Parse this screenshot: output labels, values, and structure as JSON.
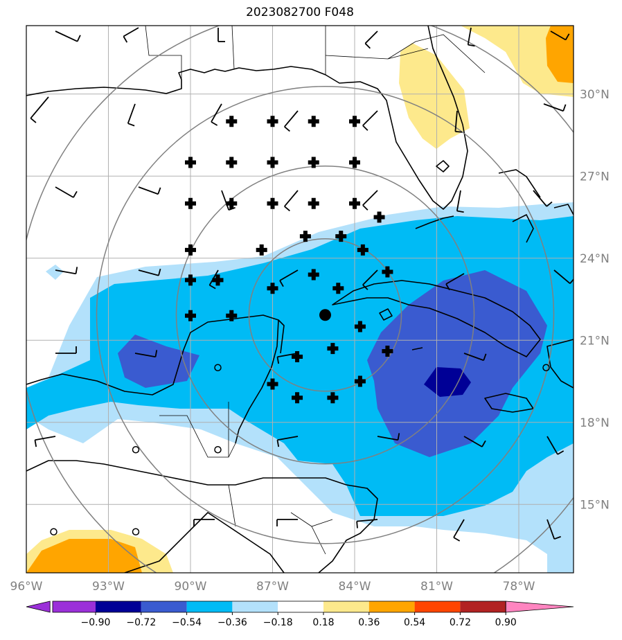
{
  "title": "2023082700 F048",
  "colors": {
    "neg090": "#9b30d9",
    "neg072": "#000096",
    "neg054": "#3a5bd0",
    "neg036": "#00bbf5",
    "neg018": "#b3e1fb",
    "neutral": "#ffffff",
    "pos018": "#fde98c",
    "pos036": "#ffa500",
    "pos054": "#ff4500",
    "pos072": "#b22222",
    "pos090": "#ff85c0",
    "grid": "#b0b0b0",
    "coast": "#000000",
    "ring": "#808080",
    "tick_label": "#808080"
  },
  "map": {
    "lon_range": [
      -96,
      -76
    ],
    "lat_range": [
      12.5,
      32.5
    ],
    "lon_ticks": [
      {
        "value": -96,
        "label": "96°W"
      },
      {
        "value": -93,
        "label": "93°W"
      },
      {
        "value": -90,
        "label": "90°W"
      },
      {
        "value": -87,
        "label": "87°W"
      },
      {
        "value": -84,
        "label": "84°W"
      },
      {
        "value": -81,
        "label": "81°W"
      },
      {
        "value": -78,
        "label": "78°W"
      }
    ],
    "lat_ticks": [
      {
        "value": 15,
        "label": "15°N"
      },
      {
        "value": 18,
        "label": "18°N"
      },
      {
        "value": 21,
        "label": "21°N"
      },
      {
        "value": 24,
        "label": "24°N"
      },
      {
        "value": 27,
        "label": "27°N"
      },
      {
        "value": 30,
        "label": "30°N"
      }
    ],
    "storm_center": {
      "lon": -85.0,
      "lat": 22.0
    },
    "plus_markers": [
      [
        -88.5,
        29.0
      ],
      [
        -87.0,
        29.0
      ],
      [
        -85.5,
        29.0
      ],
      [
        -84.0,
        29.0
      ],
      [
        -90.0,
        27.5
      ],
      [
        -88.5,
        27.5
      ],
      [
        -87.0,
        27.5
      ],
      [
        -85.5,
        27.5
      ],
      [
        -84.0,
        27.5
      ],
      [
        -90.0,
        26.0
      ],
      [
        -88.5,
        26.0
      ],
      [
        -87.0,
        26.0
      ],
      [
        -85.5,
        26.0
      ],
      [
        -84.0,
        26.0
      ],
      [
        -83.1,
        25.5
      ],
      [
        -85.8,
        24.8
      ],
      [
        -84.5,
        24.8
      ],
      [
        -90.0,
        24.3
      ],
      [
        -87.4,
        24.3
      ],
      [
        -83.7,
        24.3
      ],
      [
        -90.0,
        23.2
      ],
      [
        -89.0,
        23.2
      ],
      [
        -85.5,
        23.4
      ],
      [
        -87.0,
        22.9
      ],
      [
        -84.6,
        22.9
      ],
      [
        -82.8,
        23.5
      ],
      [
        -90.0,
        21.9
      ],
      [
        -88.5,
        21.9
      ],
      [
        -83.8,
        21.5
      ],
      [
        -84.8,
        20.7
      ],
      [
        -82.8,
        20.6
      ],
      [
        -86.1,
        20.4
      ],
      [
        -87.0,
        19.4
      ],
      [
        -83.8,
        19.5
      ],
      [
        -86.1,
        18.9
      ],
      [
        -84.8,
        18.9
      ]
    ],
    "circle_markers": [
      [
        -89.0,
        20.0
      ],
      [
        -77.0,
        20.0
      ],
      [
        -92.0,
        17.0
      ],
      [
        -89.0,
        17.0
      ],
      [
        -95.0,
        14.0
      ],
      [
        -92.0,
        14.0
      ]
    ]
  },
  "colorbar": {
    "ticks": [
      "−0.90",
      "−0.72",
      "−0.54",
      "−0.36",
      "−0.18",
      "0.18",
      "0.36",
      "0.54",
      "0.72",
      "0.90"
    ]
  }
}
